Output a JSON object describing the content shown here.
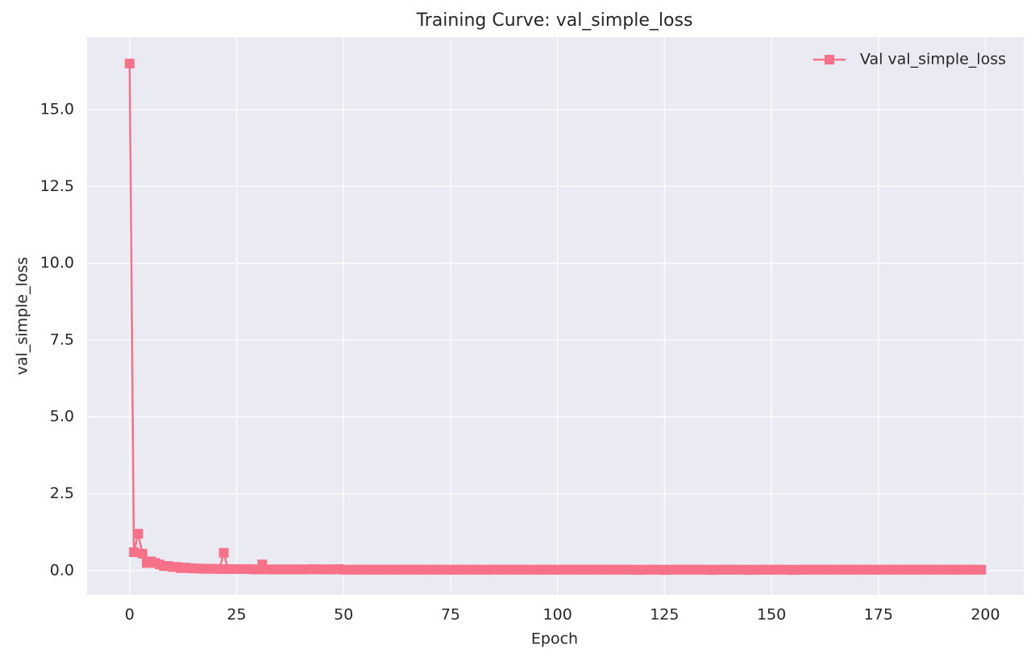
{
  "chart_data": {
    "type": "line",
    "title": "Training Curve: val_simple_loss",
    "xlabel": "Epoch",
    "ylabel": "val_simple_loss",
    "x": [
      0,
      1,
      2,
      3,
      4,
      5,
      6,
      7,
      8,
      9,
      10,
      11,
      12,
      13,
      14,
      15,
      16,
      17,
      18,
      19,
      20,
      21,
      22,
      23,
      24,
      25,
      26,
      27,
      28,
      29,
      30,
      31,
      32,
      33,
      34,
      35,
      36,
      37,
      38,
      39,
      40,
      41,
      42,
      43,
      44,
      45,
      46,
      47,
      48,
      49,
      50,
      51,
      52,
      53,
      54,
      55,
      56,
      57,
      58,
      59,
      60,
      61,
      62,
      63,
      64,
      65,
      66,
      67,
      68,
      69,
      70,
      71,
      72,
      73,
      74,
      75,
      76,
      77,
      78,
      79,
      80,
      81,
      82,
      83,
      84,
      85,
      86,
      87,
      88,
      89,
      90,
      91,
      92,
      93,
      94,
      95,
      96,
      97,
      98,
      99,
      100,
      101,
      102,
      103,
      104,
      105,
      106,
      107,
      108,
      109,
      110,
      111,
      112,
      113,
      114,
      115,
      116,
      117,
      118,
      119,
      120,
      121,
      122,
      123,
      124,
      125,
      126,
      127,
      128,
      129,
      130,
      131,
      132,
      133,
      134,
      135,
      136,
      137,
      138,
      139,
      140,
      141,
      142,
      143,
      144,
      145,
      146,
      147,
      148,
      149,
      150,
      151,
      152,
      153,
      154,
      155,
      156,
      157,
      158,
      159,
      160,
      161,
      162,
      163,
      164,
      165,
      166,
      167,
      168,
      169,
      170,
      171,
      172,
      173,
      174,
      175,
      176,
      177,
      178,
      179,
      180,
      181,
      182,
      183,
      184,
      185,
      186,
      187,
      188,
      189,
      190,
      191,
      192,
      193,
      194,
      195,
      196,
      197,
      198,
      199
    ],
    "series": [
      {
        "name": "Val val_simple_loss",
        "color": "#f77189",
        "values": [
          16.5,
          0.6,
          1.2,
          0.55,
          0.25,
          0.3,
          0.25,
          0.2,
          0.15,
          0.15,
          0.12,
          0.12,
          0.08,
          0.1,
          0.08,
          0.07,
          0.07,
          0.06,
          0.06,
          0.06,
          0.06,
          0.05,
          0.58,
          0.05,
          0.05,
          0.05,
          0.05,
          0.05,
          0.05,
          0.04,
          0.04,
          0.2,
          0.04,
          0.04,
          0.04,
          0.04,
          0.04,
          0.04,
          0.04,
          0.04,
          0.04,
          0.04,
          0.04,
          0.05,
          0.04,
          0.04,
          0.04,
          0.04,
          0.04,
          0.05,
          0.03,
          0.03,
          0.03,
          0.03,
          0.03,
          0.03,
          0.03,
          0.03,
          0.03,
          0.03,
          0.03,
          0.03,
          0.03,
          0.03,
          0.03,
          0.03,
          0.03,
          0.03,
          0.03,
          0.03,
          0.03,
          0.03,
          0.03,
          0.03,
          0.03,
          0.03,
          0.03,
          0.03,
          0.03,
          0.03,
          0.03,
          0.03,
          0.03,
          0.03,
          0.03,
          0.03,
          0.03,
          0.03,
          0.03,
          0.03,
          0.03,
          0.03,
          0.03,
          0.03,
          0.03,
          0.03,
          0.03,
          0.03,
          0.03,
          0.03,
          0.03,
          0.03,
          0.03,
          0.03,
          0.03,
          0.03,
          0.03,
          0.03,
          0.03,
          0.03,
          0.03,
          0.03,
          0.03,
          0.03,
          0.03,
          0.03,
          0.03,
          0.03,
          0.03,
          0.02,
          0.03,
          0.03,
          0.03,
          0.03,
          0.03,
          0.02,
          0.03,
          0.03,
          0.03,
          0.03,
          0.03,
          0.03,
          0.03,
          0.03,
          0.03,
          0.03,
          0.02,
          0.03,
          0.03,
          0.03,
          0.03,
          0.03,
          0.03,
          0.03,
          0.03,
          0.02,
          0.03,
          0.03,
          0.03,
          0.03,
          0.03,
          0.03,
          0.03,
          0.03,
          0.03,
          0.02,
          0.03,
          0.03,
          0.03,
          0.03,
          0.03,
          0.03,
          0.03,
          0.03,
          0.03,
          0.03,
          0.03,
          0.03,
          0.03,
          0.03,
          0.03,
          0.03,
          0.03,
          0.03,
          0.03,
          0.03,
          0.03,
          0.03,
          0.03,
          0.03,
          0.03,
          0.03,
          0.03,
          0.03,
          0.03,
          0.03,
          0.03,
          0.03,
          0.03,
          0.03,
          0.03,
          0.03,
          0.03,
          0.03,
          0.03,
          0.03,
          0.03,
          0.03,
          0.03,
          0.03
        ]
      }
    ],
    "xlim": [
      -9.95,
      208.95
    ],
    "ylim": [
      -0.79,
      17.36
    ],
    "xticks": [
      0,
      25,
      50,
      75,
      100,
      125,
      150,
      175,
      200
    ],
    "yticks": [
      {
        "value": 0,
        "label": "0.0"
      },
      2.5,
      {
        "value": 5,
        "label": "5.0"
      },
      7.5,
      {
        "value": 10,
        "label": "10.0"
      },
      12.5,
      {
        "value": 15,
        "label": "15.0"
      }
    ],
    "grid": true,
    "legend": "upper right",
    "marker": "square"
  }
}
